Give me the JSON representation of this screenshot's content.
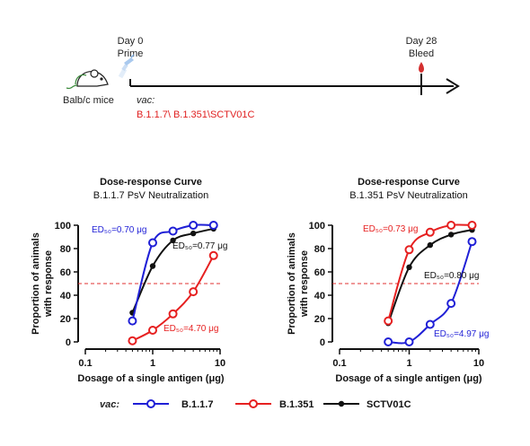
{
  "timeline": {
    "day0": "Day 0",
    "prime": "Prime",
    "day28": "Day 28",
    "bleed": "Bleed",
    "mice": "Balb/c mice",
    "vac_label": "vac:",
    "vac_values": "B.1.1.7\\ B.1.351\\SCTV01C"
  },
  "colors": {
    "blue": "#1f1fd6",
    "red": "#e62020",
    "black": "#111111",
    "threshold": "#e03030"
  },
  "legend": {
    "vac_label": "vac:",
    "items": [
      "B.1.1.7",
      "B.1.351",
      "SCTV01C"
    ]
  },
  "chart_data": [
    {
      "type": "line",
      "title": "Dose-response Curve",
      "subtitle": "B.1.1.7 PsV Neutralization",
      "xlabel": "Dosage of a single antigen (μg)",
      "ylabel_lines": [
        "Proportion of animals",
        "with response"
      ],
      "xscale": "log",
      "xlim": [
        0.1,
        10
      ],
      "ylim": [
        0,
        100
      ],
      "xticks": [
        0.1,
        1,
        10
      ],
      "xtick_labels": [
        "0.1",
        "1",
        "10"
      ],
      "yticks": [
        0,
        20,
        40,
        60,
        80,
        100
      ],
      "threshold": 50,
      "series": [
        {
          "name": "B.1.1.7",
          "color": "blue",
          "x": [
            0.5,
            1,
            2,
            4,
            8
          ],
          "y": [
            18,
            85,
            95,
            100,
            100
          ],
          "ed50_label": "ED₅₀=0.70 μg"
        },
        {
          "name": "B.1.351",
          "color": "red",
          "x": [
            0.5,
            1,
            2,
            4,
            8
          ],
          "y": [
            1,
            10,
            24,
            43,
            74
          ],
          "ed50_label": "ED₅₀=4.70 μg"
        },
        {
          "name": "SCTV01C",
          "color": "black",
          "x": [
            0.5,
            1,
            2,
            4,
            8
          ],
          "y": [
            25,
            65,
            87,
            93,
            97
          ],
          "ed50_label": "ED₅₀=0.77 μg"
        }
      ]
    },
    {
      "type": "line",
      "title": "Dose-response Curve",
      "subtitle": "B.1.351 PsV Neutralization",
      "xlabel": "Dosage of a single antigen (μg)",
      "ylabel_lines": [
        "Proportion of animals",
        "with response"
      ],
      "xscale": "log",
      "xlim": [
        0.1,
        10
      ],
      "ylim": [
        0,
        100
      ],
      "xticks": [
        0.1,
        1,
        10
      ],
      "xtick_labels": [
        "0.1",
        "1",
        "10"
      ],
      "yticks": [
        0,
        20,
        40,
        60,
        80,
        100
      ],
      "threshold": 50,
      "series": [
        {
          "name": "B.1.1.7",
          "color": "blue",
          "x": [
            0.5,
            1,
            2,
            4,
            8
          ],
          "y": [
            0,
            0,
            15,
            33,
            86
          ],
          "ed50_label": "ED₅₀=4.97 μg"
        },
        {
          "name": "B.1.351",
          "color": "red",
          "x": [
            0.5,
            1,
            2,
            4,
            8
          ],
          "y": [
            18,
            79,
            94,
            100,
            100
          ],
          "ed50_label": "ED₅₀=0.73 μg"
        },
        {
          "name": "SCTV01C",
          "color": "black",
          "x": [
            0.5,
            1,
            2,
            4,
            8
          ],
          "y": [
            16,
            64,
            83,
            92,
            96
          ],
          "ed50_label": "ED₅₀=0.80 μg"
        }
      ]
    }
  ]
}
